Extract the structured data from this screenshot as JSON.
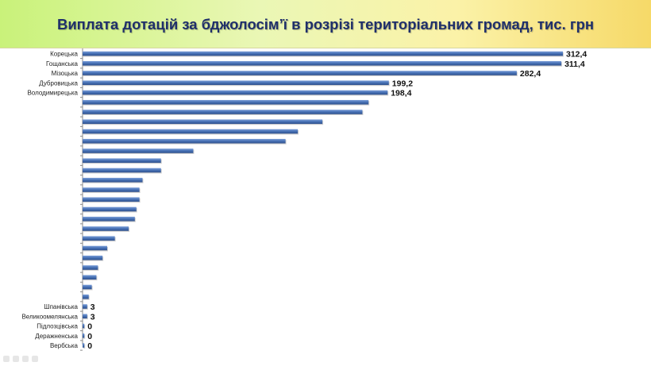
{
  "chart_data": {
    "type": "bar",
    "orientation": "horizontal",
    "title": "Виплата дотацій за бджолосім’ї в розрізі територіальних громад,  тис. грн",
    "bar_color": "#4a74b8",
    "bars": [
      {
        "label": "Корецька",
        "value": 312.4,
        "value_label": "312,4"
      },
      {
        "label": "Гощанська",
        "value": 311.4,
        "value_label": "311,4"
      },
      {
        "label": "Мізоцька",
        "value": 282.4,
        "value_label": "282,4"
      },
      {
        "label": "Дубровицька",
        "value": 199.2,
        "value_label": "199,2"
      },
      {
        "label": "Володимирецька",
        "value": 198.4,
        "value_label": "198,4"
      },
      {
        "label": "",
        "value": 186,
        "value_label": ""
      },
      {
        "label": "",
        "value": 182,
        "value_label": ""
      },
      {
        "label": "",
        "value": 156,
        "value_label": ""
      },
      {
        "label": "",
        "value": 140,
        "value_label": ""
      },
      {
        "label": "",
        "value": 132,
        "value_label": ""
      },
      {
        "label": "",
        "value": 72,
        "value_label": ""
      },
      {
        "label": "",
        "value": 51,
        "value_label": ""
      },
      {
        "label": "",
        "value": 51,
        "value_label": ""
      },
      {
        "label": "",
        "value": 39,
        "value_label": ""
      },
      {
        "label": "",
        "value": 37,
        "value_label": ""
      },
      {
        "label": "",
        "value": 37,
        "value_label": ""
      },
      {
        "label": "",
        "value": 35,
        "value_label": ""
      },
      {
        "label": "",
        "value": 34,
        "value_label": ""
      },
      {
        "label": "",
        "value": 30,
        "value_label": ""
      },
      {
        "label": "",
        "value": 21,
        "value_label": ""
      },
      {
        "label": "",
        "value": 16,
        "value_label": ""
      },
      {
        "label": "",
        "value": 13,
        "value_label": ""
      },
      {
        "label": "",
        "value": 10,
        "value_label": ""
      },
      {
        "label": "",
        "value": 9,
        "value_label": ""
      },
      {
        "label": "",
        "value": 6,
        "value_label": ""
      },
      {
        "label": "",
        "value": 4,
        "value_label": ""
      },
      {
        "label": "Шпанівська",
        "value": 3,
        "value_label": "3"
      },
      {
        "label": "Великоомелянська",
        "value": 3,
        "value_label": "3"
      },
      {
        "label": "Підлозцівська",
        "value": 0,
        "value_label": "0"
      },
      {
        "label": "Деражненська",
        "value": 0,
        "value_label": "0"
      },
      {
        "label": "Вербська",
        "value": 0,
        "value_label": "0"
      }
    ],
    "xlim": [
      0,
      330
    ],
    "grid": false,
    "legend": "none"
  }
}
